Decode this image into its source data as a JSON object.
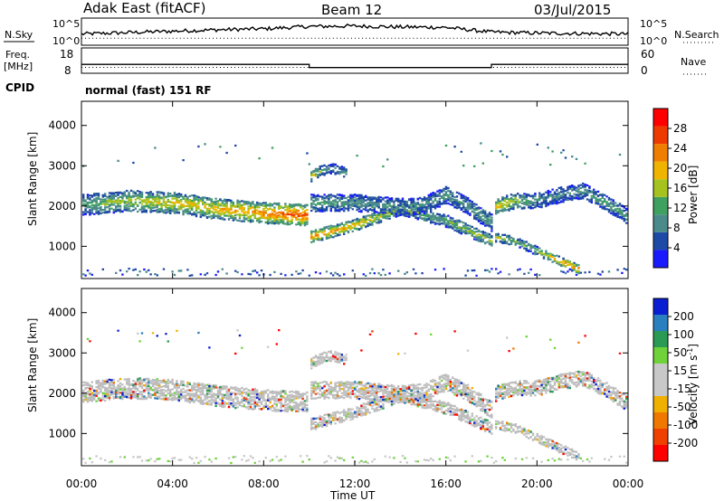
{
  "header": {
    "station": "Adak East (fitACF)",
    "beam": "Beam 12",
    "date": "03/Jul/2015"
  },
  "side_labels": {
    "nsky": "N.Sky",
    "freq": "Freq.",
    "mhz": "[MHz]",
    "cpid": "CPID",
    "nsearch": "N.Search",
    "nave": "Nave",
    "cpid_text": "normal (fast) 151 RF"
  },
  "colors": {
    "power": [
      "#1a1aff",
      "#1f49a6",
      "#4b8a8a",
      "#3fa060",
      "#a6c21e",
      "#f0b400",
      "#f07e00",
      "#ee3a00",
      "#ff0000"
    ],
    "velocity": [
      "#0a1fd2",
      "#2a7fbf",
      "#2a9a55",
      "#6fd23a",
      "#c8c8c8",
      "#c8c8c8",
      "#f0b000",
      "#f07800",
      "#f04000",
      "#ff0000"
    ],
    "gray_scatter": "#bdbdbd"
  },
  "chart_data": [
    {
      "type": "line",
      "title": "N.Sky / N.Search",
      "y_tick_labels": [
        "10^5",
        "10^0"
      ],
      "right_tick_labels": [
        "10^5",
        "10^0"
      ],
      "series": [
        {
          "name": "N.Sky",
          "x": [
            "00:00",
            "02:00",
            "04:00",
            "06:00",
            "08:00",
            "10:00",
            "12:00",
            "14:00",
            "16:00",
            "18:00",
            "20:00",
            "22:00",
            "24:00"
          ],
          "values": [
            2.0,
            2.3,
            2.6,
            2.9,
            3.1,
            3.6,
            3.7,
            3.5,
            3.4,
            2.4,
            2.2,
            2.1,
            2.0
          ]
        },
        {
          "name": "N.Search",
          "values": [
            1.1,
            1.1,
            1.1,
            1.1,
            1.1,
            1.1,
            1.1,
            1.1,
            1.1,
            1.1,
            1.1,
            1.1,
            1.1
          ]
        }
      ]
    },
    {
      "type": "line",
      "title": "Freq. / Nave",
      "ylabel": "Freq. [MHz]",
      "y_ticks": [
        "18",
        "8"
      ],
      "right_ticks": [
        "60",
        "0"
      ],
      "series": [
        {
          "name": "Freq",
          "x": [
            "00:00",
            "10:00",
            "10:00",
            "18:00",
            "18:00",
            "24:00"
          ],
          "values": [
            12.0,
            12.0,
            10.4,
            10.4,
            12.0,
            12.0
          ]
        },
        {
          "name": "Nave",
          "values": [
            15,
            15,
            15,
            15,
            15,
            15
          ]
        }
      ]
    },
    {
      "type": "heatmap",
      "title": "Power",
      "xlabel": "",
      "ylabel": "Slant Range [km]",
      "x_ticks": [
        "00:00",
        "04:00",
        "08:00",
        "12:00",
        "16:00",
        "20:00",
        "00:00"
      ],
      "y_ticks": [
        "1000",
        "2000",
        "3000",
        "4000"
      ],
      "ylim": [
        200,
        4600
      ],
      "colorbar": {
        "label": "Power [dB]",
        "ticks": [
          "4",
          "8",
          "12",
          "16",
          "20",
          "24",
          "28"
        ]
      },
      "bands": [
        {
          "x_hours": [
            0,
            2,
            4,
            6,
            8,
            9.9
          ],
          "range_km": [
            2050,
            2150,
            2100,
            1950,
            1850,
            1800
          ],
          "width_km": 520,
          "peak_db": [
            14,
            18,
            20,
            22,
            26,
            30
          ]
        },
        {
          "x_hours": [
            10,
            12,
            14,
            16,
            18
          ],
          "range_km": [
            1250,
            1550,
            1950,
            1650,
            1150
          ],
          "width_km": 300,
          "peak_db": [
            26,
            22,
            16,
            14,
            18
          ]
        },
        {
          "x_hours": [
            10,
            12,
            14,
            15,
            16,
            17,
            18
          ],
          "range_km": [
            2100,
            2100,
            2000,
            2050,
            2300,
            2000,
            1600
          ],
          "width_km": 420,
          "peak_db": [
            14,
            12,
            12,
            12,
            12,
            12,
            14
          ]
        },
        {
          "x_hours": [
            18.1,
            19,
            20,
            21,
            22,
            23,
            24
          ],
          "range_km": [
            2000,
            2150,
            2150,
            2300,
            2400,
            2100,
            1750
          ],
          "width_km": 380,
          "peak_db": [
            22,
            18,
            12,
            10,
            12,
            14,
            12
          ]
        },
        {
          "x_hours": [
            18.1,
            19,
            20,
            21,
            21.8
          ],
          "range_km": [
            1250,
            1150,
            900,
            650,
            450
          ],
          "width_km": 220,
          "peak_db": [
            20,
            14,
            16,
            24,
            28
          ]
        },
        {
          "x_hours": [
            10,
            10.5,
            11,
            11.6
          ],
          "range_km": [
            2750,
            2900,
            2950,
            2850
          ],
          "width_km": 260,
          "peak_db": [
            22,
            14,
            12,
            12
          ]
        }
      ]
    },
    {
      "type": "heatmap",
      "title": "Velocity",
      "xlabel": "Time UT",
      "ylabel": "Slant Range [km]",
      "x_ticks": [
        "00:00",
        "04:00",
        "08:00",
        "12:00",
        "16:00",
        "20:00",
        "00:00"
      ],
      "y_ticks": [
        "1000",
        "2000",
        "3000",
        "4000"
      ],
      "ylim": [
        200,
        4600
      ],
      "colorbar": {
        "label": "Velocity [m s",
        "label_sup": "-1",
        "label_end": "]",
        "ticks": [
          "200",
          "100",
          "50",
          "15",
          "-15",
          "-50",
          "-100",
          "-200"
        ]
      }
    }
  ]
}
